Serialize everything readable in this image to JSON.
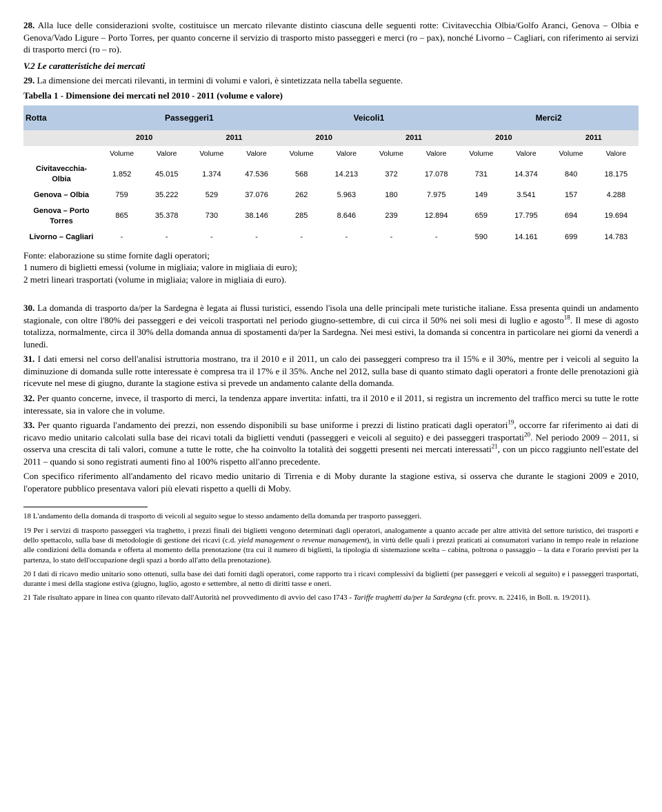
{
  "p28": {
    "num": "28.",
    "text": "Alla luce delle considerazioni svolte, costituisce un mercato rilevante distinto ciascuna delle seguenti rotte: Civitavecchia Olbia/Golfo Aranci, Genova – Olbia e Genova/Vado Ligure – Porto Torres, per quanto concerne il servizio di trasporto misto passeggeri e merci (ro – pax), nonché Livorno – Cagliari, con riferimento ai servizi di trasporto merci (ro – ro)."
  },
  "heading": "V.2 Le caratteristiche dei mercati",
  "p29": {
    "num": "29.",
    "text": "La dimensione dei mercati rilevanti, in termini di volumi e valori, è sintetizzata nella tabella seguente."
  },
  "table_caption": "Tabella 1 - Dimensione dei mercati nel 2010 - 2011  (volume e valore)",
  "table": {
    "hdr_route": "Rotta",
    "hdr_groups": [
      "Passeggeri1",
      "Veicoli1",
      "Merci2"
    ],
    "hdr_years": [
      "2010",
      "2011",
      "2010",
      "2011",
      "2010",
      "2011"
    ],
    "hdr_sub": [
      "Volume",
      "Valore",
      "Volume",
      "Valore",
      "Volume",
      "Valore",
      "Volume",
      "Valore",
      "Volume",
      "Valore",
      "Volume",
      "Valore"
    ],
    "rows": [
      {
        "route": "Civitavecchia- Olbia",
        "cells": [
          "1.852",
          "45.015",
          "1.374",
          "47.536",
          "568",
          "14.213",
          "372",
          "17.078",
          "731",
          "14.374",
          "840",
          "18.175"
        ]
      },
      {
        "route": "Genova – Olbia",
        "cells": [
          "759",
          "35.222",
          "529",
          "37.076",
          "262",
          "5.963",
          "180",
          "7.975",
          "149",
          "3.541",
          "157",
          "4.288"
        ]
      },
      {
        "route": "Genova – Porto Torres",
        "cells": [
          "865",
          "35.378",
          "730",
          "38.146",
          "285",
          "8.646",
          "239",
          "12.894",
          "659",
          "17.795",
          "694",
          "19.694"
        ]
      },
      {
        "route": "Livorno – Cagliari",
        "cells": [
          "-",
          "-",
          "-",
          "-",
          "-",
          "-",
          "-",
          "-",
          "590",
          "14.161",
          "699",
          "14.783"
        ]
      }
    ],
    "hdr_bg": "#b7cce4",
    "year_bg": "#e6e6e6"
  },
  "table_footnotes": [
    "Fonte: elaborazione su stime fornite dagli operatori;",
    "1 numero di biglietti emessi (volume in migliaia; valore in migliaia di euro);",
    "2 metri lineari trasportati (volume in migliaia; valore in migliaia di euro)."
  ],
  "p30": {
    "num": "30.",
    "t1": "La domanda di trasporto da/per la Sardegna è legata ai flussi turistici, essendo l'isola una delle principali mete turistiche italiane. Essa presenta quindi un andamento stagionale, con oltre l'80% dei passeggeri e dei veicoli trasportati nel periodo giugno-settembre, di cui circa il 50% nei soli mesi di luglio e agosto",
    "sup": "18",
    "t2": ". Il mese di agosto totalizza, normalmente, circa il 30% della domanda annua di spostamenti da/per la Sardegna. Nei mesi estivi, la domanda si concentra in particolare nei giorni da venerdì a lunedì."
  },
  "p31": {
    "num": "31.",
    "text": "I dati emersi nel corso dell'analisi istruttoria mostrano, tra il 2010 e il 2011, un calo dei passeggeri compreso tra il 15% e il 30%, mentre per i veicoli al seguito la diminuzione di domanda sulle rotte interessate è compresa tra il 17% e il 35%. Anche nel 2012, sulla base di quanto stimato dagli operatori a fronte delle prenotazioni già ricevute nel mese di giugno, durante la stagione estiva si prevede un andamento calante della domanda."
  },
  "p32": {
    "num": "32.",
    "text": "Per quanto concerne, invece, il trasporto di merci, la tendenza appare invertita: infatti, tra il 2010 e il 2011, si registra un incremento del traffico merci su tutte le rotte interessate, sia in valore che in volume."
  },
  "p33": {
    "num": "33.",
    "t1": "Per quanto riguarda l'andamento dei prezzi, non essendo disponibili su base uniforme i prezzi di listino praticati dagli operatori",
    "sup1": "19",
    "t2": ", occorre far riferimento ai dati di ricavo medio unitario calcolati sulla base dei ricavi totali da biglietti venduti (passeggeri e veicoli al seguito) e dei passeggeri trasportati",
    "sup2": "20",
    "t3": ". Nel periodo 2009 – 2011, si osserva una crescita di tali valori, comune a tutte le rotte, che ha coinvolto la totalità dei soggetti presenti nei mercati interessati",
    "sup3": "21",
    "t4": ", con un picco raggiunto nell'estate del 2011 – quando si sono registrati aumenti fino al 100% rispetto all'anno precedente."
  },
  "p33b": "Con specifico riferimento all'andamento del ricavo medio unitario di Tirrenia e di Moby durante la stagione estiva, si osserva che durante le stagioni 2009 e 2010, l'operatore pubblico presentava valori più elevati rispetto a quelli di Moby.",
  "footnotes": {
    "f18": {
      "n": "18",
      "text": "L'andamento della domanda di trasporto di veicoli al seguito segue lo stesso andamento della domanda per trasporto passeggeri."
    },
    "f19": {
      "n": "19",
      "t1": "Per i servizi di trasporto passeggeri via traghetto, i prezzi finali dei biglietti vengono determinati dagli operatori, analogamente a quanto accade per altre attività del settore turistico, dei trasporti e dello spettacolo, sulla base di metodologie di gestione dei ricavi (c.d. ",
      "it1": "yield management",
      "t2": " o ",
      "it2": "revenue management",
      "t3": "), in virtù delle quali i prezzi praticati ai consumatori variano in tempo reale in relazione alle condizioni della domanda e offerta al momento della prenotazione (tra cui il numero di biglietti, la tipologia di sistemazione scelta – cabina, poltrona o passaggio – la data e l'orario previsti per la partenza, lo stato dell'occupazione degli spazi a bordo all'atto della prenotazione)."
    },
    "f20": {
      "n": "20",
      "text": "I dati di ricavo medio unitario sono ottenuti, sulla base dei dati forniti dagli operatori, come rapporto tra i ricavi complessivi da biglietti (per passeggeri e veicoli al seguito) e i passeggeri trasportati, durante i mesi della stagione estiva (giugno, luglio, agosto e settembre, al netto di diritti tasse e oneri."
    },
    "f21": {
      "n": "21",
      "t1": "Tale risultato appare in linea con quanto rilevato dall'Autorità nel provvedimento di avvio del caso I743 - ",
      "it": "Tariffe traghetti da/per la Sardegna",
      "t2": " (cfr. provv. n. 22416, in Boll. n. 19/2011)."
    }
  }
}
